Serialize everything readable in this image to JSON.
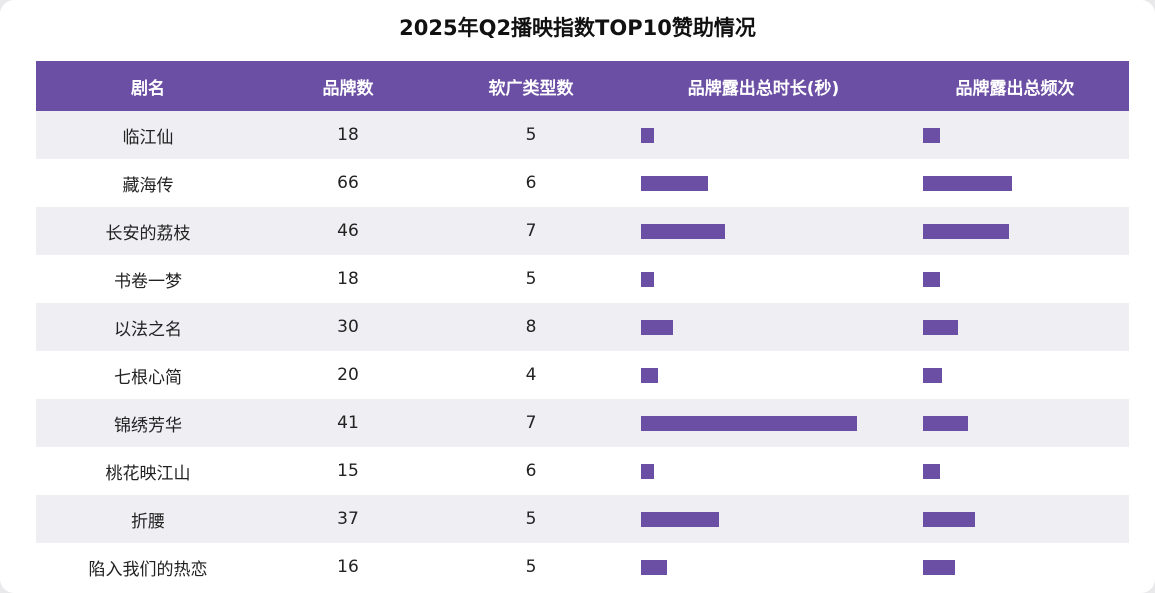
{
  "title": "2025年Q2播映指数TOP10赞助情况",
  "colors": {
    "accent": "#6b4fa5",
    "row_alt": "#efeff3"
  },
  "chart_data": {
    "type": "table",
    "title": "2025年Q2播映指数TOP10赞助情况",
    "columns": [
      "剧名",
      "品牌数",
      "软广类型数",
      "品牌露出总时长(秒)",
      "品牌露出总频次"
    ],
    "rows": [
      {
        "name": "临江仙",
        "brands": "18",
        "ad_types": "5",
        "duration": 0.06,
        "frequency": 0.19
      },
      {
        "name": "藏海传",
        "brands": "66",
        "ad_types": "6",
        "duration": 0.31,
        "frequency": 1.0
      },
      {
        "name": "长安的荔枝",
        "brands": "46",
        "ad_types": "7",
        "duration": 0.39,
        "frequency": 0.97
      },
      {
        "name": "书卷一梦",
        "brands": "18",
        "ad_types": "5",
        "duration": 0.06,
        "frequency": 0.19
      },
      {
        "name": "以法之名",
        "brands": "30",
        "ad_types": "8",
        "duration": 0.15,
        "frequency": 0.39
      },
      {
        "name": "七根心简",
        "brands": "20",
        "ad_types": "4",
        "duration": 0.08,
        "frequency": 0.21
      },
      {
        "name": "锦绣芳华",
        "brands": "41",
        "ad_types": "7",
        "duration": 1.0,
        "frequency": 0.51
      },
      {
        "name": "桃花映江山",
        "brands": "15",
        "ad_types": "6",
        "duration": 0.06,
        "frequency": 0.19
      },
      {
        "name": "折腰",
        "brands": "37",
        "ad_types": "5",
        "duration": 0.36,
        "frequency": 0.58
      },
      {
        "name": "陷入我们的热恋",
        "brands": "16",
        "ad_types": "5",
        "duration": 0.12,
        "frequency": 0.36
      }
    ],
    "bar_value_note": "bars are unlabeled; values are fractions of each column's longest bar"
  }
}
